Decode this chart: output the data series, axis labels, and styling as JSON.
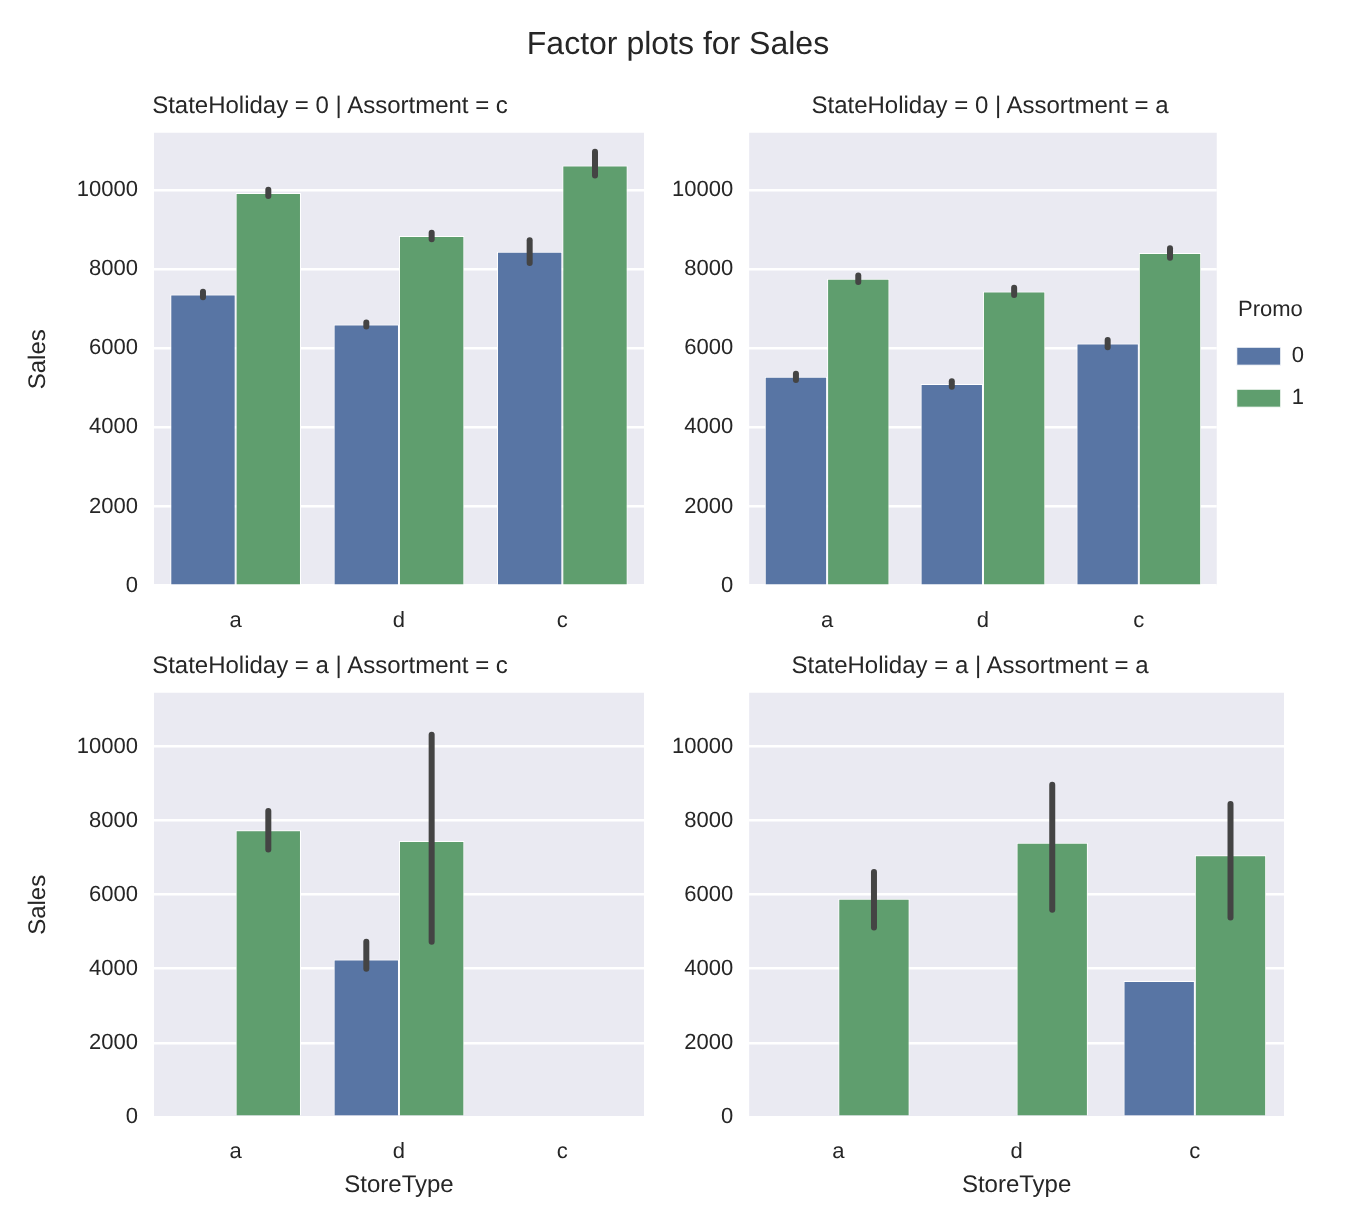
{
  "chart_data": [
    {
      "type": "bar",
      "title": "StateHoliday = 0 | Assortment = c",
      "annotations": [
        "Factor plots for Sales"
      ],
      "ylabel": "Sales",
      "categories": [
        "a",
        "d",
        "c"
      ],
      "ylim": [
        0,
        11450
      ],
      "yticks": [
        0,
        2000,
        4000,
        6000,
        8000,
        10000
      ],
      "grid": "y",
      "legend": false,
      "series": [
        {
          "color": "#5875a4",
          "values": [
            7360,
            6600,
            8440
          ],
          "errors": [
            [
              7290,
              7430
            ],
            [
              6550,
              6650
            ],
            [
              8160,
              8730
            ]
          ]
        },
        {
          "color": "#5f9e6e",
          "values": [
            9930,
            8840,
            10620
          ],
          "errors": [
            [
              9850,
              10010
            ],
            [
              8760,
              8920
            ],
            [
              10370,
              10970
            ]
          ]
        }
      ]
    },
    {
      "type": "bar",
      "title": "StateHoliday = 0 | Assortment = a",
      "categories": [
        "a",
        "d",
        "c"
      ],
      "ylim": [
        0,
        11450
      ],
      "yticks": [
        0,
        2000,
        4000,
        6000,
        8000,
        10000
      ],
      "grid": "y",
      "legend": "right",
      "legend_title": "Promo",
      "series": [
        {
          "name": "0",
          "color": "#5875a4",
          "values": [
            5280,
            5100,
            6120
          ],
          "errors": [
            [
              5200,
              5360
            ],
            [
              5030,
              5170
            ],
            [
              6030,
              6210
            ]
          ]
        },
        {
          "name": "1",
          "color": "#5f9e6e",
          "values": [
            7760,
            7440,
            8410
          ],
          "errors": [
            [
              7680,
              7840
            ],
            [
              7350,
              7530
            ],
            [
              8290,
              8530
            ]
          ]
        }
      ]
    },
    {
      "type": "bar",
      "title": "StateHoliday = a | Assortment = c",
      "xlabel": "StoreType",
      "ylabel": "Sales",
      "categories": [
        "a",
        "d",
        "c"
      ],
      "ylim": [
        0,
        11450
      ],
      "yticks": [
        0,
        2000,
        4000,
        6000,
        8000,
        10000
      ],
      "grid": "y",
      "legend": false,
      "series": [
        {
          "color": "#5875a4",
          "values": [
            null,
            4250,
            null
          ],
          "errors": [
            null,
            [
              4000,
              4730
            ],
            null
          ]
        },
        {
          "color": "#5f9e6e",
          "values": [
            7740,
            7450,
            null
          ],
          "errors": [
            [
              7215,
              8260
            ],
            [
              4730,
              10320
            ],
            null
          ]
        }
      ]
    },
    {
      "type": "bar",
      "title": "StateHoliday = a | Assortment = a",
      "xlabel": "StoreType",
      "categories": [
        "a",
        "d",
        "c"
      ],
      "ylim": [
        0,
        11450
      ],
      "yticks": [
        0,
        2000,
        4000,
        6000,
        8000,
        10000
      ],
      "grid": "y",
      "legend": false,
      "series": [
        {
          "color": "#5875a4",
          "values": [
            null,
            null,
            3670
          ],
          "errors": [
            null,
            null,
            null
          ]
        },
        {
          "color": "#5f9e6e",
          "values": [
            5890,
            7400,
            7060
          ],
          "errors": [
            [
              5110,
              6610
            ],
            [
              5590,
              8970
            ],
            [
              5380,
              8450
            ]
          ]
        }
      ]
    }
  ]
}
